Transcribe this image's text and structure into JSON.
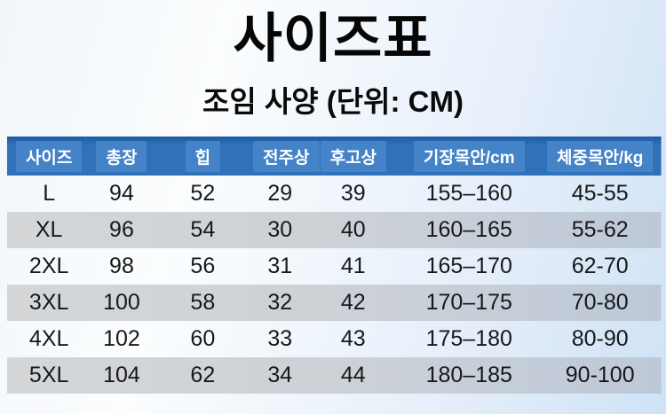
{
  "page": {
    "title": "사이즈표",
    "subtitle": "조임 사양 (단위: CM)"
  },
  "table": {
    "columns": [
      "사이즈",
      "총장",
      "힙",
      "전주상",
      "후고상",
      "기장목안/cm",
      "체중목안/kg"
    ],
    "rows": [
      [
        "L",
        "94",
        "52",
        "29",
        "39",
        "155–160",
        "45-55"
      ],
      [
        "XL",
        "96",
        "54",
        "30",
        "40",
        "160–165",
        "55-62"
      ],
      [
        "2XL",
        "98",
        "56",
        "31",
        "41",
        "165–170",
        "62-70"
      ],
      [
        "3XL",
        "100",
        "58",
        "32",
        "42",
        "170–175",
        "70-80"
      ],
      [
        "4XL",
        "102",
        "60",
        "33",
        "43",
        "175–180",
        "80-90"
      ],
      [
        "5XL",
        "104",
        "62",
        "34",
        "44",
        "180–185",
        "90-100"
      ]
    ]
  },
  "colors": {
    "header_bg": "#2f72ba",
    "header_bg_top": "#1d5aa3",
    "header_chip_bg": "#4483c8",
    "header_text": "#ffffff",
    "row_alt_start": "#d4d6d8",
    "row_alt_end": "#bdc9d8",
    "text": "#17181a",
    "page_bg_start": "#f2f6fa",
    "page_bg_mid": "#fbfdfe",
    "page_bg_end": "#cfe2f5"
  }
}
